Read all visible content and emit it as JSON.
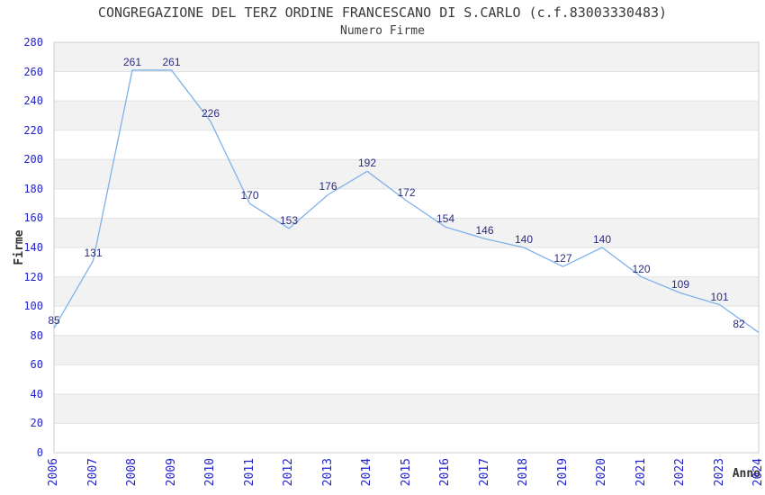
{
  "chart_data": {
    "type": "line",
    "title": "CONGREGAZIONE DEL TERZ ORDINE FRANCESCANO DI S.CARLO (c.f.83003330483)",
    "subtitle": "Numero Firme",
    "xlabel": "Anno",
    "ylabel": "Firme",
    "categories": [
      "2006",
      "2007",
      "2008",
      "2009",
      "2010",
      "2011",
      "2012",
      "2013",
      "2014",
      "2015",
      "2016",
      "2017",
      "2018",
      "2019",
      "2020",
      "2021",
      "2022",
      "2023",
      "2024"
    ],
    "series": [
      {
        "name": "Numero Firme",
        "values": [
          85,
          131,
          261,
          261,
          226,
          170,
          153,
          176,
          192,
          172,
          154,
          146,
          140,
          127,
          140,
          120,
          109,
          101,
          82
        ]
      }
    ],
    "ylim": [
      0,
      280
    ],
    "ytick_step": 20,
    "grid": "horizontal-bands",
    "legend": "none",
    "data_labels": "on",
    "colors": {
      "line": "#7fb2e8",
      "tick_label": "#2323cc",
      "data_label": "#2b2b7e",
      "band_gray": "#f2f2f2",
      "band_white": "#ffffff",
      "gridline": "#e2e2e2",
      "plot_border": "#cccccc",
      "title_text": "#3a3a3a"
    }
  }
}
